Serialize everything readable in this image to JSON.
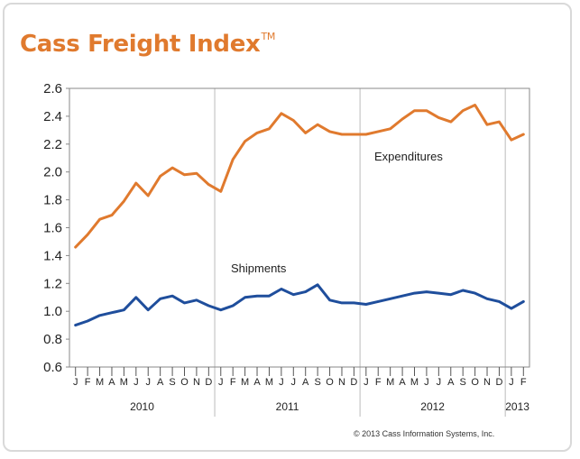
{
  "title": "Cass Freight Index",
  "title_mark": "TM",
  "copyright": "© 2013 Cass Information Systems, Inc.",
  "colors": {
    "expenditures": "#e07a2e",
    "shipments": "#1f4e9c",
    "grid": "#bbbbbb",
    "title": "#e07a2e"
  },
  "chart_data": {
    "type": "line",
    "title": "Cass Freight Index",
    "xlabel": "",
    "ylabel": "",
    "ylim": [
      0.6,
      2.6
    ],
    "yticks": [
      "0.6",
      "0.8",
      "1.0",
      "1.2",
      "1.4",
      "1.6",
      "1.8",
      "2.0",
      "2.2",
      "2.4",
      "2.6"
    ],
    "month_labels": [
      "J",
      "F",
      "M",
      "A",
      "M",
      "J",
      "J",
      "A",
      "S",
      "O",
      "N",
      "D",
      "J",
      "F",
      "M",
      "A",
      "M",
      "J",
      "J",
      "A",
      "S",
      "O",
      "N",
      "D",
      "J",
      "F",
      "M",
      "A",
      "M",
      "J",
      "J",
      "A",
      "S",
      "O",
      "N",
      "D",
      "J",
      "F"
    ],
    "years": [
      "2010",
      "2011",
      "2012",
      "2013"
    ],
    "grid": "vertical at year boundaries",
    "annotations": [
      "Expenditures",
      "Shipments"
    ],
    "series": [
      {
        "name": "Expenditures",
        "values": [
          1.46,
          1.55,
          1.66,
          1.69,
          1.79,
          1.92,
          1.83,
          1.97,
          2.03,
          1.98,
          1.99,
          1.91,
          1.86,
          2.09,
          2.22,
          2.28,
          2.31,
          2.42,
          2.37,
          2.28,
          2.34,
          2.29,
          2.27,
          2.27,
          2.27,
          2.29,
          2.31,
          2.38,
          2.44,
          2.44,
          2.39,
          2.36,
          2.44,
          2.48,
          2.34,
          2.36,
          2.23,
          2.27
        ]
      },
      {
        "name": "Shipments",
        "values": [
          0.9,
          0.93,
          0.97,
          0.99,
          1.01,
          1.1,
          1.01,
          1.09,
          1.11,
          1.06,
          1.08,
          1.04,
          1.01,
          1.04,
          1.1,
          1.11,
          1.11,
          1.16,
          1.12,
          1.14,
          1.19,
          1.08,
          1.06,
          1.06,
          1.05,
          1.07,
          1.09,
          1.11,
          1.13,
          1.14,
          1.13,
          1.12,
          1.15,
          1.13,
          1.09,
          1.07,
          1.02,
          1.07
        ]
      }
    ]
  }
}
